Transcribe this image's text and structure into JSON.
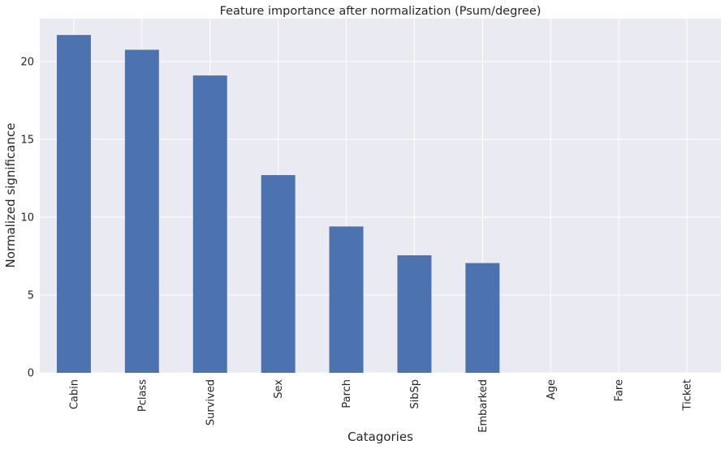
{
  "chart_data": {
    "type": "bar",
    "title": "Feature importance after normalization (Psum/degree)",
    "xlabel": "Catagories",
    "ylabel": "Normalized significance",
    "categories": [
      "Cabin",
      "Pclass",
      "Survived",
      "Sex",
      "Parch",
      "SibSp",
      "Embarked",
      "Age",
      "Fare",
      "Ticket"
    ],
    "values": [
      21.7,
      20.75,
      19.1,
      12.7,
      9.4,
      7.55,
      7.05,
      0,
      0,
      0
    ],
    "ylim": [
      0,
      22.75
    ],
    "yticks": [
      0,
      5,
      10,
      15,
      20
    ],
    "grid": true,
    "colors": {
      "bar": "#4c72b0",
      "background": "#eaeaf2",
      "grid": "#ffffff",
      "text": "#262626"
    }
  }
}
